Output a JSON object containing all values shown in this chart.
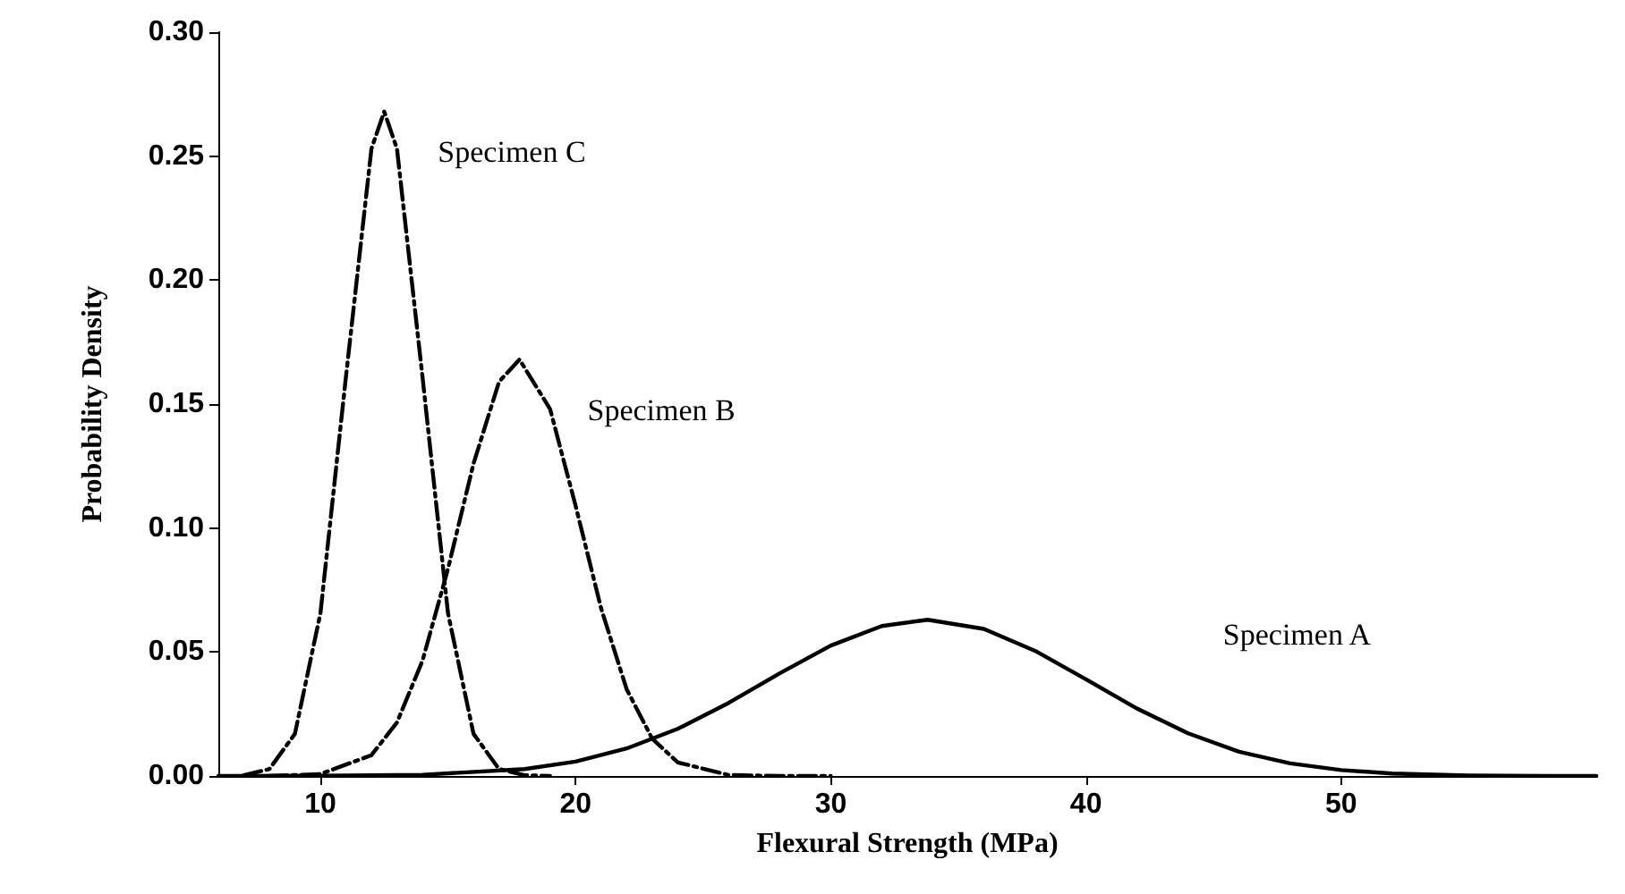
{
  "chart_data": {
    "type": "line",
    "xlabel": "Flexural Strength (MPa)",
    "ylabel": "Probability Density",
    "xlim": [
      6,
      60
    ],
    "ylim": [
      0,
      0.3
    ],
    "xticks": [
      10,
      20,
      30,
      40,
      50
    ],
    "yticks": [
      {
        "value": 0,
        "label": "0.00"
      },
      {
        "value": 0.05,
        "label": "0.05"
      },
      {
        "value": 0.1,
        "label": "0.10"
      },
      {
        "value": 0.15,
        "label": "0.15"
      },
      {
        "value": 0.2,
        "label": "0.20"
      },
      {
        "value": 0.25,
        "label": "0.25"
      },
      {
        "value": 0.3,
        "label": "0.30"
      }
    ],
    "grid": false,
    "marker": "none",
    "series": [
      {
        "name": "Specimen A",
        "color": "#000000",
        "line_style": "solid",
        "x": [
          6,
          10,
          14,
          18,
          20,
          22,
          24,
          26,
          28,
          30,
          32,
          33.8,
          36,
          38,
          40,
          42,
          44,
          46,
          48,
          50,
          52,
          55,
          58,
          60
        ],
        "values": [
          0,
          0.0001,
          0.0005,
          0.0028,
          0.0058,
          0.0111,
          0.019,
          0.0295,
          0.0414,
          0.0526,
          0.0605,
          0.063,
          0.0593,
          0.0505,
          0.039,
          0.0272,
          0.0172,
          0.0098,
          0.0051,
          0.0024,
          0.001,
          0.0002,
          0,
          0
        ]
      },
      {
        "name": "Specimen B",
        "color": "#000000",
        "line_style": "dashed",
        "x": [
          8,
          10,
          12,
          13,
          14,
          15,
          16,
          17,
          17.8,
          19,
          20,
          21,
          22,
          23,
          24,
          26,
          28,
          30
        ],
        "values": [
          0,
          0.0008,
          0.0084,
          0.0216,
          0.0465,
          0.0836,
          0.126,
          0.159,
          0.168,
          0.148,
          0.109,
          0.0676,
          0.035,
          0.0151,
          0.0055,
          0.0004,
          0,
          0
        ]
      },
      {
        "name": "Specimen C",
        "color": "#000000",
        "line_style": "dashed",
        "x": [
          7,
          8,
          9,
          10,
          11,
          12,
          12.5,
          13,
          14,
          15,
          16,
          17,
          18,
          19
        ],
        "values": [
          0.0003,
          0.0028,
          0.017,
          0.0656,
          0.161,
          0.253,
          0.268,
          0.253,
          0.161,
          0.0656,
          0.017,
          0.0028,
          0.0003,
          0
        ]
      }
    ]
  }
}
